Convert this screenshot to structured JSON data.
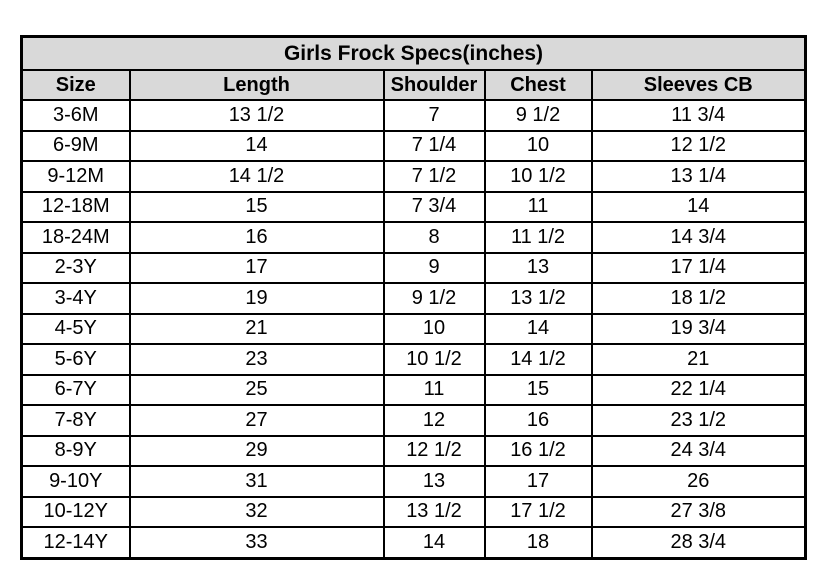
{
  "chart_data": {
    "type": "table",
    "title": "Girls Frock Specs(inches)",
    "columns": [
      "Size",
      "Length",
      "Shoulder",
      "Chest",
      "Sleeves CB"
    ],
    "rows": [
      [
        "3-6M",
        "13 1/2",
        "7",
        "9 1/2",
        "11 3/4"
      ],
      [
        "6-9M",
        "14",
        "7 1/4",
        "10",
        "12 1/2"
      ],
      [
        "9-12M",
        "14 1/2",
        "7 1/2",
        "10 1/2",
        "13 1/4"
      ],
      [
        "12-18M",
        "15",
        "7 3/4",
        "11",
        "14"
      ],
      [
        "18-24M",
        "16",
        "8",
        "11 1/2",
        "14 3/4"
      ],
      [
        "2-3Y",
        "17",
        "9",
        "13",
        "17 1/4"
      ],
      [
        "3-4Y",
        "19",
        "9 1/2",
        "13 1/2",
        "18 1/2"
      ],
      [
        "4-5Y",
        "21",
        "10",
        "14",
        "19 3/4"
      ],
      [
        "5-6Y",
        "23",
        "10 1/2",
        "14 1/2",
        "21"
      ],
      [
        "6-7Y",
        "25",
        "11",
        "15",
        "22 1/4"
      ],
      [
        "7-8Y",
        "27",
        "12",
        "16",
        "23 1/2"
      ],
      [
        "8-9Y",
        "29",
        "12 1/2",
        "16 1/2",
        "24 3/4"
      ],
      [
        "9-10Y",
        "31",
        "13",
        "17",
        "26"
      ],
      [
        "10-12Y",
        "32",
        "13 1/2",
        "17 1/2",
        "27 3/8"
      ],
      [
        "12-14Y",
        "33",
        "14",
        "18",
        "28 3/4"
      ]
    ]
  },
  "colors": {
    "header_bg": "#d9d9d9",
    "border": "#000000",
    "page_bg": "#ffffff",
    "text": "#000000"
  }
}
